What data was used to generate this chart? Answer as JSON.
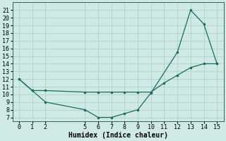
{
  "xlabel": "Humidex (Indice chaleur)",
  "background_color": "#cfe9e5",
  "grid_color": "#b0d0cc",
  "line_color": "#1a6b5e",
  "series1_x": [
    0,
    1,
    2,
    5,
    6,
    7,
    8,
    9,
    10,
    12,
    13,
    14,
    15
  ],
  "series1_y": [
    12,
    10.5,
    9,
    8,
    7,
    7,
    7.5,
    8,
    10.2,
    15.5,
    21,
    19.2,
    14
  ],
  "series2_x": [
    0,
    1,
    2,
    5,
    6,
    7,
    8,
    9,
    10,
    11,
    12,
    13,
    14,
    15
  ],
  "series2_y": [
    12,
    10.5,
    10.5,
    10.3,
    10.3,
    10.3,
    10.3,
    10.3,
    10.3,
    11.5,
    12.5,
    13.5,
    14,
    14
  ],
  "xlim": [
    -0.5,
    15.5
  ],
  "ylim": [
    6.5,
    22
  ],
  "xticks": [
    0,
    1,
    2,
    5,
    6,
    7,
    8,
    9,
    10,
    11,
    12,
    13,
    14,
    15
  ],
  "yticks": [
    7,
    8,
    9,
    10,
    11,
    12,
    13,
    14,
    15,
    16,
    17,
    18,
    19,
    20,
    21
  ],
  "markersize": 3,
  "linewidth": 0.9,
  "fontsize_axis": 6,
  "fontsize_xlabel": 7
}
